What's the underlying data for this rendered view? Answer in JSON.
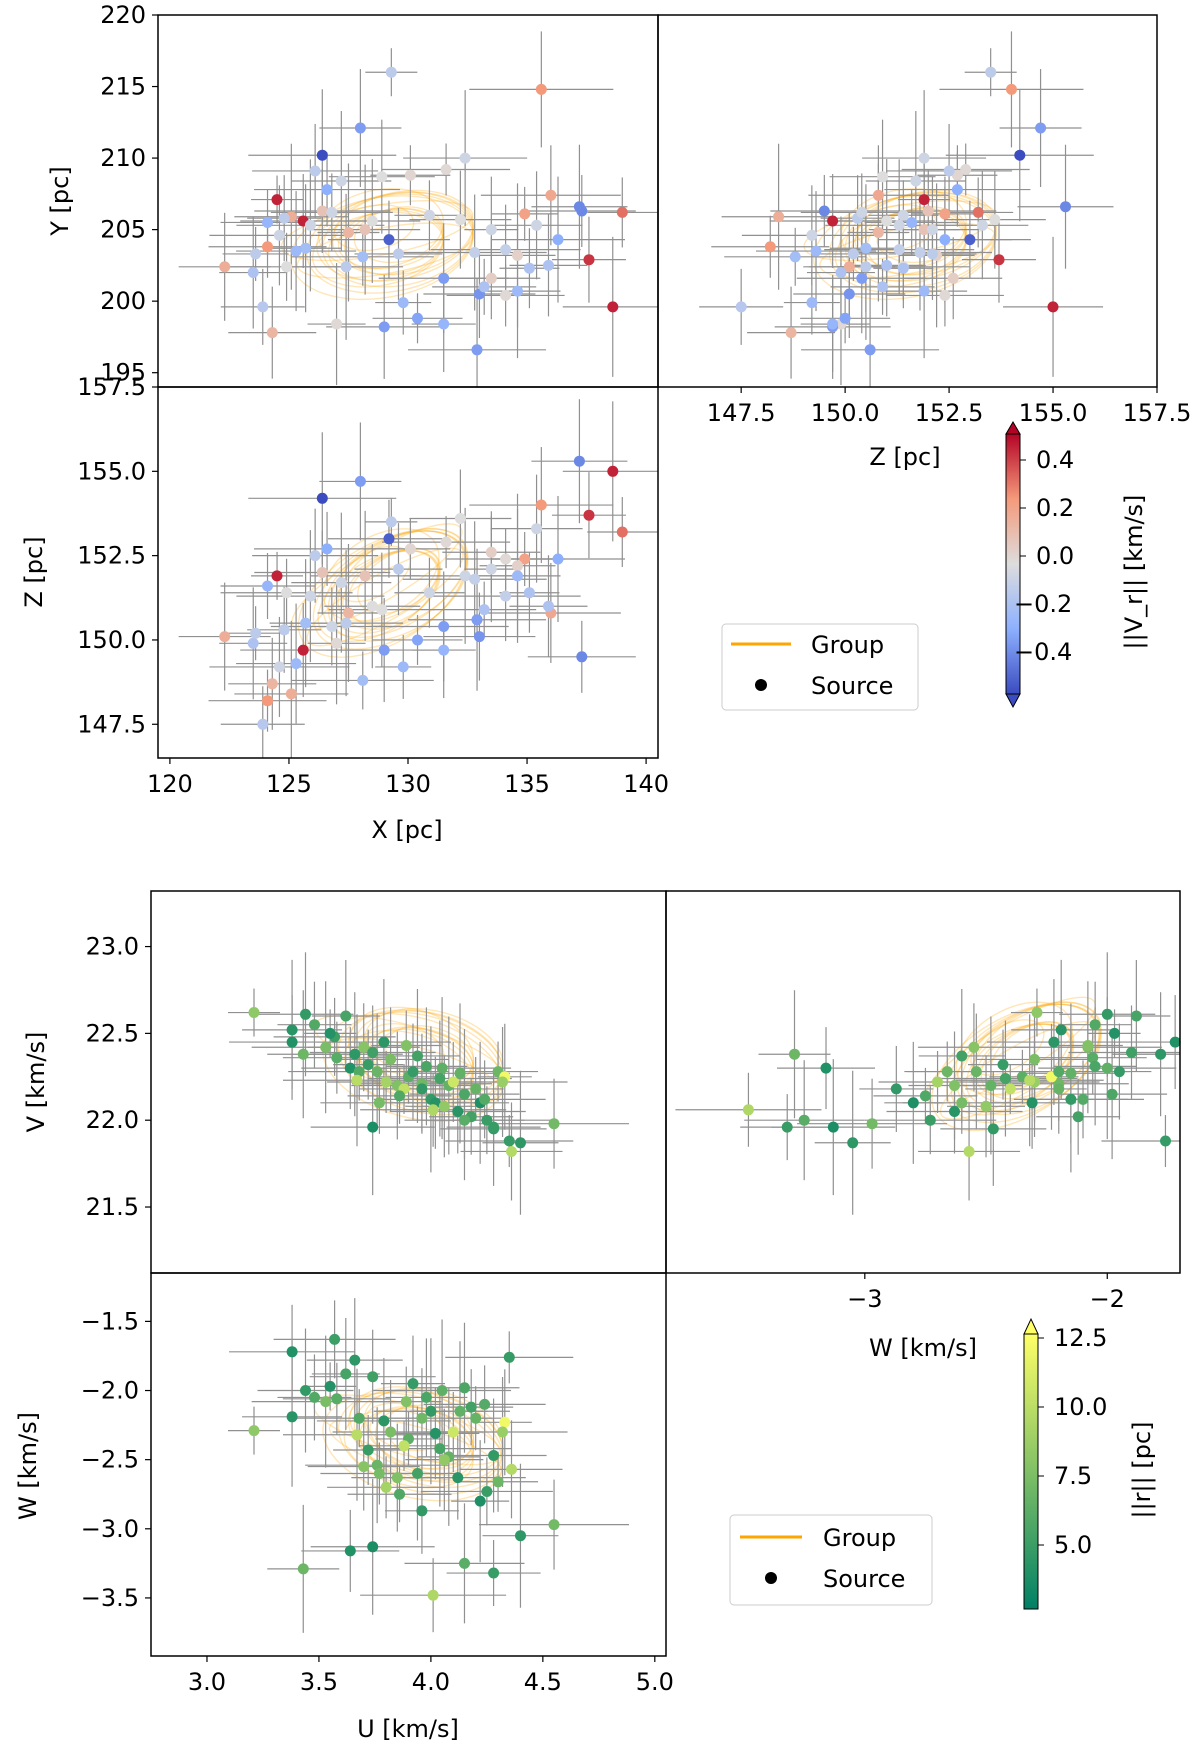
{
  "chart_data": [
    {
      "type": "scatter",
      "name": "position-space",
      "panels": [
        {
          "id": "xy",
          "xlabel": "",
          "ylabel": "Y [pc]",
          "xlim": [
            119.5,
            140.5
          ],
          "ylim": [
            194,
            220
          ],
          "yticks": [
            "195",
            "200",
            "205",
            "210",
            "215",
            "220"
          ],
          "xticks": []
        },
        {
          "id": "zy",
          "xlabel": "Z [pc]",
          "ylabel": "",
          "xlim": [
            145.5,
            157.5
          ],
          "ylim": [
            194,
            220
          ],
          "xticks": [
            "147.5",
            "150.0",
            "152.5",
            "155.0",
            "157.5"
          ],
          "yticks": []
        },
        {
          "id": "xz",
          "xlabel": "X [pc]",
          "ylabel": "Z [pc]",
          "xlim": [
            119.5,
            140.5
          ],
          "ylim": [
            146.5,
            157.5
          ],
          "xticks": [
            "120",
            "125",
            "130",
            "135",
            "140"
          ],
          "yticks": [
            "147.5",
            "150.0",
            "152.5",
            "155.0",
            "157.5"
          ]
        }
      ],
      "colorbar": {
        "label": "||V_r|| [km/s]",
        "range": [
          -0.5,
          0.5
        ],
        "ticks": [
          "0.4",
          "0.2",
          "0.0",
          "−0.2",
          "−0.4"
        ],
        "cmap": "coolwarm"
      },
      "group_ellipses": {
        "center": [
          129.2,
          204.3,
          151.6
        ],
        "note": "Group orbit ellipses (orange)"
      },
      "sources": [
        [
          124.5,
          207.1,
          151.9,
          0.45
        ],
        [
          125.6,
          205.6,
          149.7,
          0.45
        ],
        [
          138.6,
          199.6,
          155.0,
          0.45
        ],
        [
          137.6,
          202.9,
          153.7,
          0.42
        ],
        [
          126.4,
          210.2,
          154.2,
          -0.5
        ],
        [
          129.2,
          204.3,
          153.0,
          -0.45
        ],
        [
          137.2,
          206.6,
          155.3,
          -0.35
        ],
        [
          139.0,
          206.2,
          153.2,
          0.32
        ],
        [
          135.6,
          214.8,
          154.0,
          0.25
        ],
        [
          124.1,
          203.8,
          148.2,
          0.25
        ],
        [
          122.3,
          202.4,
          150.1,
          0.18
        ],
        [
          134.9,
          206.1,
          152.4,
          0.22
        ],
        [
          136.0,
          207.4,
          150.8,
          0.2
        ],
        [
          125.1,
          205.9,
          148.4,
          0.18
        ],
        [
          124.3,
          197.8,
          148.7,
          0.15
        ],
        [
          127.5,
          204.8,
          150.8,
          0.15
        ],
        [
          126.4,
          206.3,
          152.0,
          0.1
        ],
        [
          128.2,
          205.0,
          151.9,
          0.1
        ],
        [
          123.9,
          199.6,
          147.5,
          -0.12
        ],
        [
          127.0,
          198.4,
          149.9,
          0.02
        ],
        [
          124.9,
          202.4,
          151.4,
          0.0
        ],
        [
          128.9,
          208.7,
          150.9,
          0.0
        ],
        [
          130.1,
          208.8,
          152.7,
          0.03
        ],
        [
          133.5,
          205.0,
          152.1,
          -0.05
        ],
        [
          131.6,
          209.2,
          152.9,
          0.02
        ],
        [
          132.2,
          205.7,
          153.6,
          0.0
        ],
        [
          134.6,
          203.2,
          152.2,
          0.05
        ],
        [
          134.1,
          203.6,
          151.3,
          -0.08
        ],
        [
          132.4,
          210.0,
          151.9,
          -0.05
        ],
        [
          133.5,
          201.6,
          152.6,
          0.06
        ],
        [
          125.7,
          203.7,
          150.5,
          -0.18
        ],
        [
          126.6,
          207.8,
          152.7,
          -0.25
        ],
        [
          125.3,
          203.5,
          149.3,
          -0.2
        ],
        [
          124.1,
          205.5,
          151.6,
          -0.22
        ],
        [
          123.5,
          202.0,
          149.9,
          -0.15
        ],
        [
          128.1,
          203.1,
          148.8,
          -0.18
        ],
        [
          129.0,
          198.2,
          149.7,
          -0.3
        ],
        [
          130.4,
          198.8,
          150.0,
          -0.28
        ],
        [
          131.5,
          198.4,
          149.7,
          -0.22
        ],
        [
          132.9,
          196.6,
          150.6,
          -0.3
        ],
        [
          133.0,
          200.5,
          150.1,
          -0.32
        ],
        [
          134.6,
          200.7,
          151.9,
          -0.2
        ],
        [
          135.1,
          202.3,
          151.4,
          -0.15
        ],
        [
          136.3,
          204.3,
          152.4,
          -0.25
        ],
        [
          137.3,
          206.3,
          149.5,
          -0.35
        ],
        [
          128.0,
          212.1,
          154.7,
          -0.3
        ],
        [
          129.8,
          199.9,
          149.2,
          -0.2
        ],
        [
          131.5,
          201.6,
          150.4,
          -0.3
        ],
        [
          133.2,
          201.0,
          150.9,
          -0.15
        ],
        [
          135.9,
          202.5,
          151.0,
          -0.15
        ],
        [
          129.3,
          216.0,
          153.5,
          -0.1
        ],
        [
          126.1,
          209.1,
          152.5,
          -0.1
        ],
        [
          127.2,
          208.4,
          151.7,
          -0.05
        ],
        [
          124.8,
          205.8,
          150.3,
          -0.1
        ],
        [
          125.9,
          205.3,
          151.3,
          -0.05
        ],
        [
          126.8,
          206.2,
          150.4,
          -0.05
        ],
        [
          128.5,
          205.6,
          151.0,
          0.0
        ],
        [
          130.9,
          206.0,
          151.4,
          -0.05
        ],
        [
          132.8,
          203.4,
          151.8,
          -0.08
        ],
        [
          134.1,
          200.4,
          152.4,
          0.02
        ],
        [
          135.4,
          205.3,
          153.3,
          -0.05
        ],
        [
          123.6,
          203.3,
          150.2,
          -0.1
        ],
        [
          124.6,
          204.6,
          149.2,
          -0.05
        ],
        [
          127.4,
          202.4,
          150.5,
          -0.1
        ],
        [
          129.6,
          203.3,
          152.1,
          -0.1
        ]
      ]
    },
    {
      "type": "scatter",
      "name": "velocity-space",
      "panels": [
        {
          "id": "uv",
          "xlabel": "",
          "ylabel": "V [km/s]",
          "xlim": [
            2.75,
            5.05
          ],
          "ylim": [
            21.12,
            23.32
          ],
          "yticks": [
            "21.5",
            "22.0",
            "22.5",
            "23.0"
          ],
          "xticks": []
        },
        {
          "id": "wv",
          "xlabel": "W [km/s]",
          "ylabel": "",
          "xlim": [
            -3.82,
            -1.7
          ],
          "ylim": [
            21.12,
            23.32
          ],
          "xticks": [
            "−3",
            "−2"
          ],
          "yticks": []
        },
        {
          "id": "uw",
          "xlabel": "U [km/s]",
          "ylabel": "W [km/s]",
          "xlim": [
            2.75,
            5.05
          ],
          "ylim": [
            -3.92,
            -1.15
          ],
          "xticks": [
            "3.0",
            "3.5",
            "4.0",
            "4.5",
            "5.0"
          ],
          "yticks": [
            "−1.5",
            "−2.0",
            "−2.5",
            "−3.0",
            "−3.5"
          ]
        }
      ],
      "colorbar": {
        "label": "||r|| [pc]",
        "range": [
          3,
          13
        ],
        "ticks": [
          "12.5",
          "10.0",
          "7.5",
          "5.0"
        ],
        "cmap": "summer"
      },
      "group_ellipses": {
        "center": [
          3.95,
          22.35,
          -2.35
        ],
        "note": "Group orbit ellipses (orange)"
      },
      "sources": [
        [
          3.21,
          22.62,
          -2.29,
          8.6
        ],
        [
          3.38,
          22.45,
          -1.72,
          4.3
        ],
        [
          3.38,
          22.52,
          -2.19,
          4.6
        ],
        [
          3.48,
          22.55,
          -2.05,
          6.2
        ],
        [
          3.53,
          22.42,
          -2.08,
          7.8
        ],
        [
          3.57,
          22.48,
          -1.63,
          5.4
        ],
        [
          3.66,
          22.38,
          -1.78,
          4.8
        ],
        [
          3.72,
          22.32,
          -2.43,
          5.2
        ],
        [
          3.76,
          22.28,
          -2.54,
          7.1
        ],
        [
          3.8,
          22.22,
          -2.7,
          9.5
        ],
        [
          3.85,
          22.2,
          -2.63,
          8.0
        ],
        [
          3.9,
          22.25,
          -2.35,
          6.6
        ],
        [
          3.96,
          22.21,
          -2.2,
          7.4
        ],
        [
          4.0,
          22.12,
          -2.15,
          5.0
        ],
        [
          4.02,
          22.1,
          -2.31,
          4.5
        ],
        [
          4.08,
          22.2,
          -2.48,
          6.9
        ],
        [
          4.12,
          22.05,
          -2.63,
          4.6
        ],
        [
          4.15,
          22.15,
          -1.98,
          6.0
        ],
        [
          4.18,
          22.02,
          -2.12,
          5.6
        ],
        [
          4.22,
          22.1,
          -2.8,
          4.2
        ],
        [
          4.25,
          22.0,
          -2.73,
          5.3
        ],
        [
          4.28,
          21.95,
          -2.47,
          5.0
        ],
        [
          4.3,
          22.28,
          -2.66,
          7.2
        ],
        [
          4.33,
          22.25,
          -2.23,
          12.5
        ],
        [
          4.35,
          21.88,
          -1.76,
          5.1
        ],
        [
          4.36,
          21.82,
          -2.57,
          10.0
        ],
        [
          4.4,
          21.87,
          -3.05,
          4.8
        ],
        [
          4.55,
          21.98,
          -2.97,
          7.5
        ],
        [
          3.74,
          21.96,
          -3.13,
          4.1
        ],
        [
          3.64,
          22.3,
          -3.16,
          4.3
        ],
        [
          3.43,
          22.38,
          -3.29,
          7.2
        ],
        [
          4.01,
          22.06,
          -3.48,
          9.8
        ],
        [
          4.15,
          22.0,
          -3.25,
          6.5
        ],
        [
          4.28,
          21.96,
          -3.32,
          5.2
        ],
        [
          3.62,
          22.6,
          -1.88,
          5.8
        ],
        [
          3.68,
          22.28,
          -2.2,
          6.2
        ],
        [
          3.82,
          22.35,
          -2.3,
          7.8
        ],
        [
          3.88,
          22.18,
          -2.4,
          10.5
        ],
        [
          3.92,
          22.28,
          -1.95,
          5.1
        ],
        [
          4.05,
          22.3,
          -2.0,
          6.7
        ],
        [
          3.7,
          22.42,
          -2.55,
          8.3
        ],
        [
          3.94,
          22.37,
          -2.6,
          5.6
        ],
        [
          4.1,
          22.22,
          -2.3,
          11.0
        ],
        [
          3.79,
          22.45,
          -2.22,
          4.7
        ],
        [
          3.58,
          22.36,
          -2.06,
          6.4
        ],
        [
          3.98,
          22.31,
          -2.05,
          5.9
        ],
        [
          4.2,
          22.18,
          -2.2,
          7.0
        ],
        [
          4.32,
          22.22,
          -2.3,
          9.0
        ],
        [
          3.86,
          22.14,
          -2.75,
          6.1
        ],
        [
          4.06,
          22.08,
          -2.5,
          8.7
        ],
        [
          3.55,
          22.5,
          -1.97,
          4.4
        ],
        [
          3.74,
          22.39,
          -1.9,
          5.5
        ],
        [
          4.13,
          22.27,
          -2.15,
          6.8
        ],
        [
          3.96,
          22.18,
          -2.87,
          4.9
        ],
        [
          3.67,
          22.23,
          -2.32,
          10.2
        ],
        [
          4.24,
          22.12,
          -2.1,
          6.3
        ],
        [
          3.44,
          22.61,
          -2.0,
          5.0
        ],
        [
          3.89,
          22.43,
          -2.08,
          8.1
        ],
        [
          4.04,
          22.24,
          -2.42,
          5.7
        ],
        [
          3.77,
          22.1,
          -2.6,
          7.6
        ]
      ]
    }
  ],
  "legend": {
    "group_label": "Group",
    "source_label": "Source",
    "group_color": "#ffa500",
    "source_color": "#000000"
  },
  "colors": {
    "error_bar": "#909090",
    "ellipse": "#ffa500",
    "axes": "#000000"
  }
}
